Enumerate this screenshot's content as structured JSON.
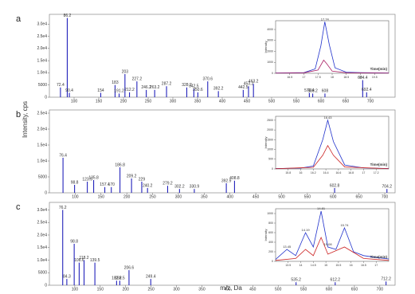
{
  "axis_labels": {
    "y": "Intensity, cps",
    "x": "m/z, Da"
  },
  "chart_data": [
    {
      "type": "bar",
      "panel_label": "a",
      "color": "#2222bb",
      "xlim": [
        50,
        750
      ],
      "xticks": [
        100,
        150,
        200,
        250,
        300,
        350,
        400,
        450,
        500,
        550,
        600,
        650,
        700
      ],
      "ylim": [
        0,
        34000
      ],
      "yticks": [
        0,
        5000,
        {
          "value": 10000,
          "label": "1.0e4"
        },
        {
          "value": 15000,
          "label": "1.5e4"
        },
        {
          "value": 20000,
          "label": "2.0e4"
        },
        {
          "value": 25000,
          "label": "2.5e4"
        },
        {
          "value": 30000,
          "label": "3.0e4"
        }
      ],
      "x": [
        72.4,
        86.2,
        90.4,
        154.0,
        183.0,
        191.2,
        203.0,
        212.2,
        227.2,
        246.2,
        263.2,
        287.2,
        328.2,
        342.5,
        350.6,
        370.6,
        392.2,
        442.5,
        453.2,
        463.2,
        576.4,
        583.2,
        608.0,
        684.4,
        692.4
      ],
      "values": [
        4000,
        32500,
        1800,
        1800,
        5000,
        1500,
        9500,
        2000,
        6500,
        3000,
        3000,
        4500,
        4000,
        3500,
        2000,
        6500,
        2500,
        3000,
        4500,
        5500,
        1800,
        1500,
        1500,
        7000,
        2000
      ],
      "inset": {
        "type": "line",
        "xlabel": "Time(min)",
        "ylabel": "Intensity",
        "xlim": [
          16.0,
          20.0
        ],
        "xticks": [
          16.5,
          17.0,
          17.5,
          18.0,
          18.5,
          19.0,
          19.5
        ],
        "ylim": [
          0,
          4800
        ],
        "yticks": [
          0,
          1000,
          2000,
          3000,
          4000
        ],
        "series": [
          {
            "color": "#2233cc",
            "x": [
              16.0,
              16.5,
              17.0,
              17.4,
              17.6,
              17.74,
              17.9,
              18.1,
              18.5,
              19.0,
              19.5,
              20.0
            ],
            "values": [
              30,
              40,
              60,
              400,
              2500,
              4700,
              2600,
              500,
              100,
              60,
              40,
              30
            ]
          },
          {
            "color": "#aa2266",
            "x": [
              16.0,
              17.0,
              17.5,
              17.7,
              17.8,
              18.0,
              18.5,
              20.0
            ],
            "values": [
              20,
              40,
              300,
              1200,
              900,
              200,
              50,
              20
            ]
          }
        ],
        "peak_labels": [
          17.74
        ]
      }
    },
    {
      "type": "bar",
      "panel_label": "b",
      "color": "#2222bb",
      "xlim": [
        50,
        720
      ],
      "xticks": [
        100,
        150,
        200,
        250,
        300,
        350,
        400,
        450,
        500,
        550,
        600,
        650,
        700
      ],
      "ylim": [
        0,
        26000
      ],
      "yticks": [
        0,
        5000,
        {
          "value": 10000,
          "label": "1.0e4"
        },
        {
          "value": 15000,
          "label": "1.5e4"
        },
        {
          "value": 20000,
          "label": "2.0e4"
        },
        {
          "value": 25000,
          "label": "2.5e4"
        }
      ],
      "x": [
        76.4,
        98.8,
        123.5,
        135.8,
        157.4,
        170.0,
        186.8,
        209.2,
        229.0,
        240.2,
        279.2,
        302.2,
        330.9,
        392.9,
        408.8,
        602.8,
        704.2
      ],
      "values": [
        11000,
        2500,
        3500,
        4000,
        1800,
        1800,
        8000,
        4500,
        3500,
        1500,
        2200,
        1200,
        1200,
        3000,
        3800,
        1500,
        1200
      ],
      "inset": {
        "type": "line",
        "xlabel": "Time(min)",
        "ylabel": "Intensity",
        "xlim": [
          15.6,
          17.4
        ],
        "xticks": [
          15.8,
          16.0,
          16.2,
          16.4,
          16.6,
          16.8,
          17.0,
          17.2
        ],
        "ylim": [
          0,
          2700
        ],
        "yticks": [
          0,
          500,
          1000,
          1500,
          2000,
          2500
        ],
        "series": [
          {
            "color": "#2233cc",
            "x": [
              15.6,
              16.0,
              16.2,
              16.35,
              16.43,
              16.52,
              16.7,
              17.0,
              17.4
            ],
            "values": [
              20,
              40,
              150,
              1500,
              2500,
              1400,
              200,
              50,
              20
            ]
          },
          {
            "color": "#cc2222",
            "x": [
              15.6,
              16.2,
              16.35,
              16.43,
              16.52,
              16.7,
              17.4
            ],
            "values": [
              10,
              80,
              700,
              1200,
              700,
              100,
              10
            ]
          }
        ],
        "peak_labels": [
          16.43
        ]
      }
    },
    {
      "type": "bar",
      "panel_label": "c",
      "color": "#2222bb",
      "xlim": [
        50,
        730
      ],
      "xticks": [
        100,
        150,
        200,
        250,
        300,
        350,
        400,
        450,
        500,
        550,
        600,
        650,
        700
      ],
      "ylim": [
        0,
        33000
      ],
      "yticks": [
        0,
        5000,
        {
          "value": 10000,
          "label": "1.0e4"
        },
        {
          "value": 15000,
          "label": "1.5e4"
        },
        {
          "value": 20000,
          "label": "2.0e4"
        },
        {
          "value": 25000,
          "label": "2.5e4"
        },
        {
          "value": 30000,
          "label": "3.0e4"
        }
      ],
      "x": [
        76.2,
        84.3,
        98.8,
        108.6,
        118.2,
        139.5,
        182.2,
        188.5,
        206.6,
        249.4,
        535.2,
        612.2,
        712.2
      ],
      "values": [
        30000,
        2500,
        16500,
        9000,
        10000,
        9000,
        1800,
        1800,
        6000,
        2500,
        1200,
        1200,
        1500
      ],
      "inset": {
        "type": "line",
        "xlabel": "Time(min)",
        "ylabel": "Intensity",
        "xlim": [
          13.0,
          17.5
        ],
        "xticks": [
          13.5,
          14.0,
          14.5,
          15.0,
          15.5,
          16.0,
          16.5,
          17.0
        ],
        "ylim": [
          0,
          1100
        ],
        "yticks": [
          0,
          200,
          400,
          600,
          800,
          1000
        ],
        "series": [
          {
            "color": "#2233cc",
            "x": [
              13.0,
              13.45,
              13.8,
              14.19,
              14.5,
              14.81,
              15.08,
              15.4,
              15.74,
              16.1,
              16.5,
              17.0,
              17.5
            ],
            "values": [
              40,
              250,
              120,
              600,
              300,
              1050,
              300,
              250,
              700,
              200,
              120,
              80,
              50
            ]
          },
          {
            "color": "#cc2222",
            "x": [
              13.0,
              13.8,
              14.19,
              14.5,
              14.81,
              15.08,
              15.74,
              16.5,
              17.5
            ],
            "values": [
              20,
              60,
              250,
              120,
              500,
              150,
              300,
              60,
              20
            ]
          }
        ],
        "peak_labels": [
          13.45,
          14.19,
          14.81,
          15.08,
          15.74
        ]
      }
    }
  ]
}
